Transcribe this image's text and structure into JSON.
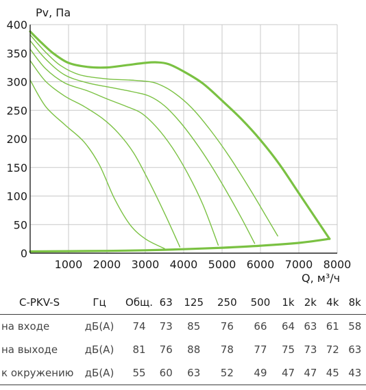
{
  "chart_data": {
    "type": "line",
    "ylabel": "Pv, Па",
    "xlabel": "Q, м³/ч",
    "xlim": [
      0,
      8000
    ],
    "ylim": [
      0,
      400
    ],
    "x_ticks": [
      "1000",
      "2000",
      "3000",
      "4000",
      "5000",
      "6000",
      "7000",
      "8000"
    ],
    "y_ticks": [
      "0",
      "50",
      "100",
      "150",
      "200",
      "250",
      "300",
      "350",
      "400"
    ],
    "grid": true,
    "line_color": "#7ac142",
    "series": [
      {
        "points": [
          [
            0,
            388
          ],
          [
            300,
            368
          ],
          [
            600,
            350
          ],
          [
            1000,
            333
          ],
          [
            1500,
            326
          ],
          [
            2000,
            325
          ],
          [
            2500,
            329
          ],
          [
            3000,
            333
          ],
          [
            3300,
            334
          ],
          [
            3600,
            331
          ],
          [
            4000,
            318
          ],
          [
            4500,
            297
          ],
          [
            5000,
            267
          ],
          [
            5500,
            235
          ],
          [
            6000,
            198
          ],
          [
            6500,
            155
          ],
          [
            7000,
            105
          ],
          [
            7500,
            55
          ],
          [
            7800,
            25
          ]
        ]
      },
      {
        "points": [
          [
            0,
            382
          ],
          [
            400,
            352
          ],
          [
            800,
            328
          ],
          [
            1300,
            312
          ],
          [
            2000,
            305
          ],
          [
            2600,
            303
          ],
          [
            3000,
            301
          ],
          [
            3300,
            297
          ],
          [
            3700,
            283
          ],
          [
            4200,
            255
          ],
          [
            4700,
            215
          ],
          [
            5200,
            168
          ],
          [
            5700,
            115
          ],
          [
            6100,
            70
          ],
          [
            6450,
            30
          ]
        ]
      },
      {
        "points": [
          [
            0,
            372
          ],
          [
            400,
            340
          ],
          [
            900,
            312
          ],
          [
            1500,
            298
          ],
          [
            2100,
            290
          ],
          [
            2700,
            282
          ],
          [
            3100,
            275
          ],
          [
            3500,
            258
          ],
          [
            3900,
            230
          ],
          [
            4300,
            195
          ],
          [
            4700,
            155
          ],
          [
            5100,
            110
          ],
          [
            5500,
            62
          ],
          [
            5850,
            17
          ]
        ]
      },
      {
        "points": [
          [
            0,
            357
          ],
          [
            400,
            323
          ],
          [
            900,
            298
          ],
          [
            1500,
            284
          ],
          [
            2000,
            270
          ],
          [
            2500,
            257
          ],
          [
            2900,
            245
          ],
          [
            3300,
            220
          ],
          [
            3700,
            185
          ],
          [
            4100,
            140
          ],
          [
            4500,
            85
          ],
          [
            4900,
            14
          ]
        ]
      },
      {
        "points": [
          [
            0,
            337
          ],
          [
            400,
            301
          ],
          [
            900,
            275
          ],
          [
            1400,
            257
          ],
          [
            1900,
            235
          ],
          [
            2300,
            210
          ],
          [
            2700,
            175
          ],
          [
            3100,
            125
          ],
          [
            3500,
            70
          ],
          [
            3900,
            11
          ]
        ]
      },
      {
        "points": [
          [
            0,
            303
          ],
          [
            400,
            257
          ],
          [
            900,
            225
          ],
          [
            1400,
            195
          ],
          [
            1800,
            155
          ],
          [
            2200,
            95
          ],
          [
            2600,
            50
          ],
          [
            3000,
            25
          ],
          [
            3500,
            8
          ]
        ]
      },
      {
        "points": [
          [
            0,
            3
          ],
          [
            1000,
            3.5
          ],
          [
            2000,
            4
          ],
          [
            3000,
            5
          ],
          [
            4000,
            7
          ],
          [
            5000,
            9.5
          ],
          [
            6000,
            13
          ],
          [
            7000,
            18
          ],
          [
            7800,
            25
          ]
        ]
      }
    ],
    "bold_series": [
      0,
      6
    ]
  },
  "table": {
    "model": "C-PKV-S",
    "unit_header": "Гц",
    "columns": [
      "Общ.",
      "63",
      "125",
      "250",
      "500",
      "1k",
      "2k",
      "4k",
      "8k"
    ],
    "rows": [
      {
        "label": "на входе",
        "unit": "дБ(А)",
        "values": [
          "74",
          "73",
          "85",
          "76",
          "66",
          "64",
          "63",
          "61",
          "58"
        ]
      },
      {
        "label": "на выходе",
        "unit": "дБ(А)",
        "values": [
          "81",
          "76",
          "88",
          "78",
          "77",
          "75",
          "73",
          "72",
          "63"
        ]
      },
      {
        "label": "к окружению",
        "unit": "дБ(А)",
        "values": [
          "55",
          "60",
          "63",
          "52",
          "49",
          "47",
          "47",
          "45",
          "43"
        ]
      }
    ]
  }
}
